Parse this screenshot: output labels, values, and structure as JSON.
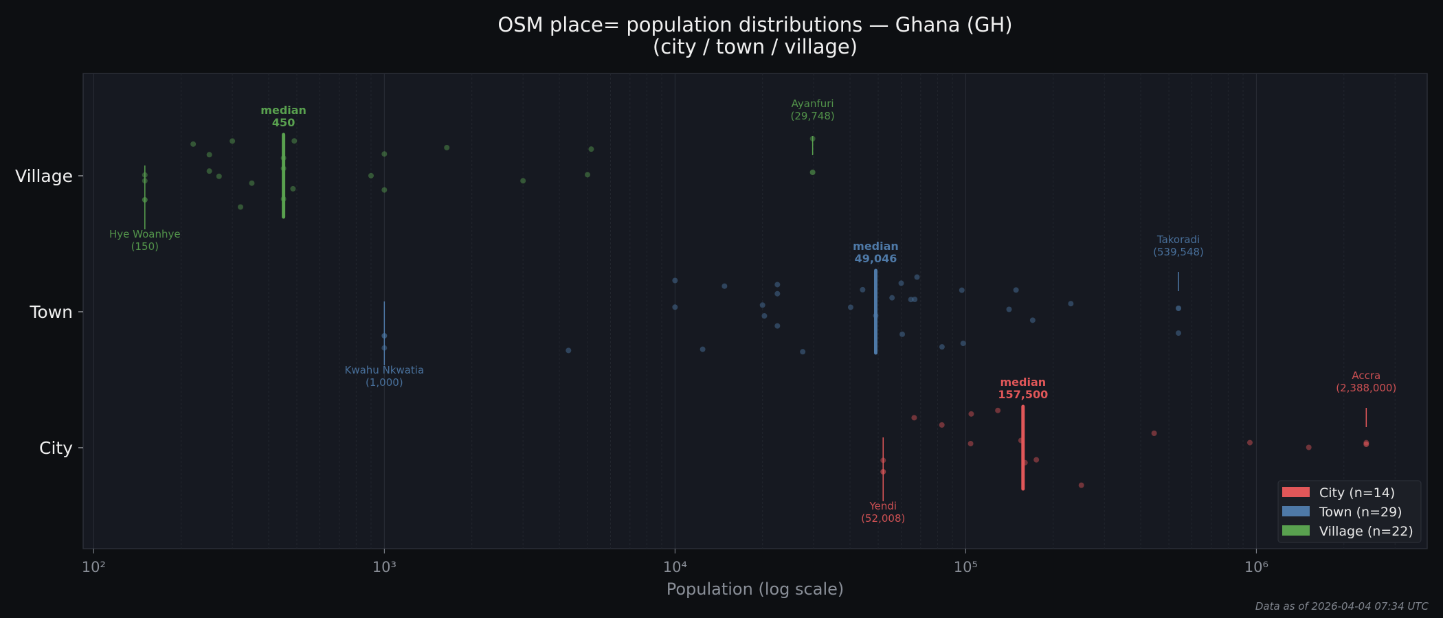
{
  "chart_data": {
    "type": "scatter",
    "title": "OSM place= population distributions — Ghana (GH)",
    "subtitle": "(city / town / village)",
    "xlabel": "Population (log scale)",
    "ylabel": "",
    "x_scale": "log",
    "xlim": [
      92,
      3870000
    ],
    "x_ticks": [
      {
        "value": 100,
        "label": "10²"
      },
      {
        "value": 1000,
        "label": "10³"
      },
      {
        "value": 10000,
        "label": "10⁴"
      },
      {
        "value": 100000,
        "label": "10⁵"
      },
      {
        "value": 1000000,
        "label": "10⁶"
      }
    ],
    "categories": [
      "City",
      "Town",
      "Village"
    ],
    "grid": true,
    "legend_position": "bottom-right",
    "footer": "Data as of 2026-04-04 07:34 UTC",
    "series": [
      {
        "name": "Village",
        "legend": "Village  (n=22)",
        "color": "#59a14f",
        "median": 450,
        "median_label": "median",
        "median_value_label": "450",
        "values": [
          150,
          150,
          220,
          250,
          250,
          270,
          300,
          320,
          350,
          450,
          450,
          450,
          485,
          490,
          900,
          1000,
          1000,
          1640,
          3000,
          5000,
          5150,
          29748
        ],
        "annotations": [
          {
            "name": "Hye Woanhye",
            "value_label": "(150)",
            "value": 150,
            "position": "below"
          },
          {
            "name": "Ayanfuri",
            "value_label": "(29,748)",
            "value": 29748,
            "position": "above"
          }
        ]
      },
      {
        "name": "Town",
        "legend": "Town  (n=29)",
        "color": "#4e79a7",
        "median": 49046,
        "median_label": "median",
        "median_value_label": "49,046",
        "values": [
          1000,
          4300,
          10000,
          10000,
          12450,
          14800,
          20000,
          20300,
          22500,
          22500,
          22500,
          27500,
          40200,
          44200,
          49046,
          55800,
          60000,
          60500,
          64800,
          66800,
          68000,
          82900,
          97000,
          98000,
          141000,
          149000,
          170000,
          230000,
          539548
        ],
        "annotations": [
          {
            "name": "Kwahu Nkwatia",
            "value_label": "(1,000)",
            "value": 1000,
            "position": "below"
          },
          {
            "name": "Takoradi",
            "value_label": "(539,548)",
            "value": 539548,
            "position": "above"
          }
        ]
      },
      {
        "name": "City",
        "legend": "City  (n=14)",
        "color": "#e15759",
        "median": 157500,
        "median_label": "median",
        "median_value_label": "157,500",
        "values": [
          52008,
          66500,
          82800,
          104000,
          104500,
          129000,
          155000,
          160000,
          175000,
          250000,
          445000,
          950000,
          1515000,
          2388000
        ],
        "annotations": [
          {
            "name": "Yendi",
            "value_label": "(52,008)",
            "value": 52008,
            "position": "below"
          },
          {
            "name": "Accra",
            "value_label": "(2,388,000)",
            "value": 2388000,
            "position": "above"
          }
        ]
      }
    ]
  }
}
